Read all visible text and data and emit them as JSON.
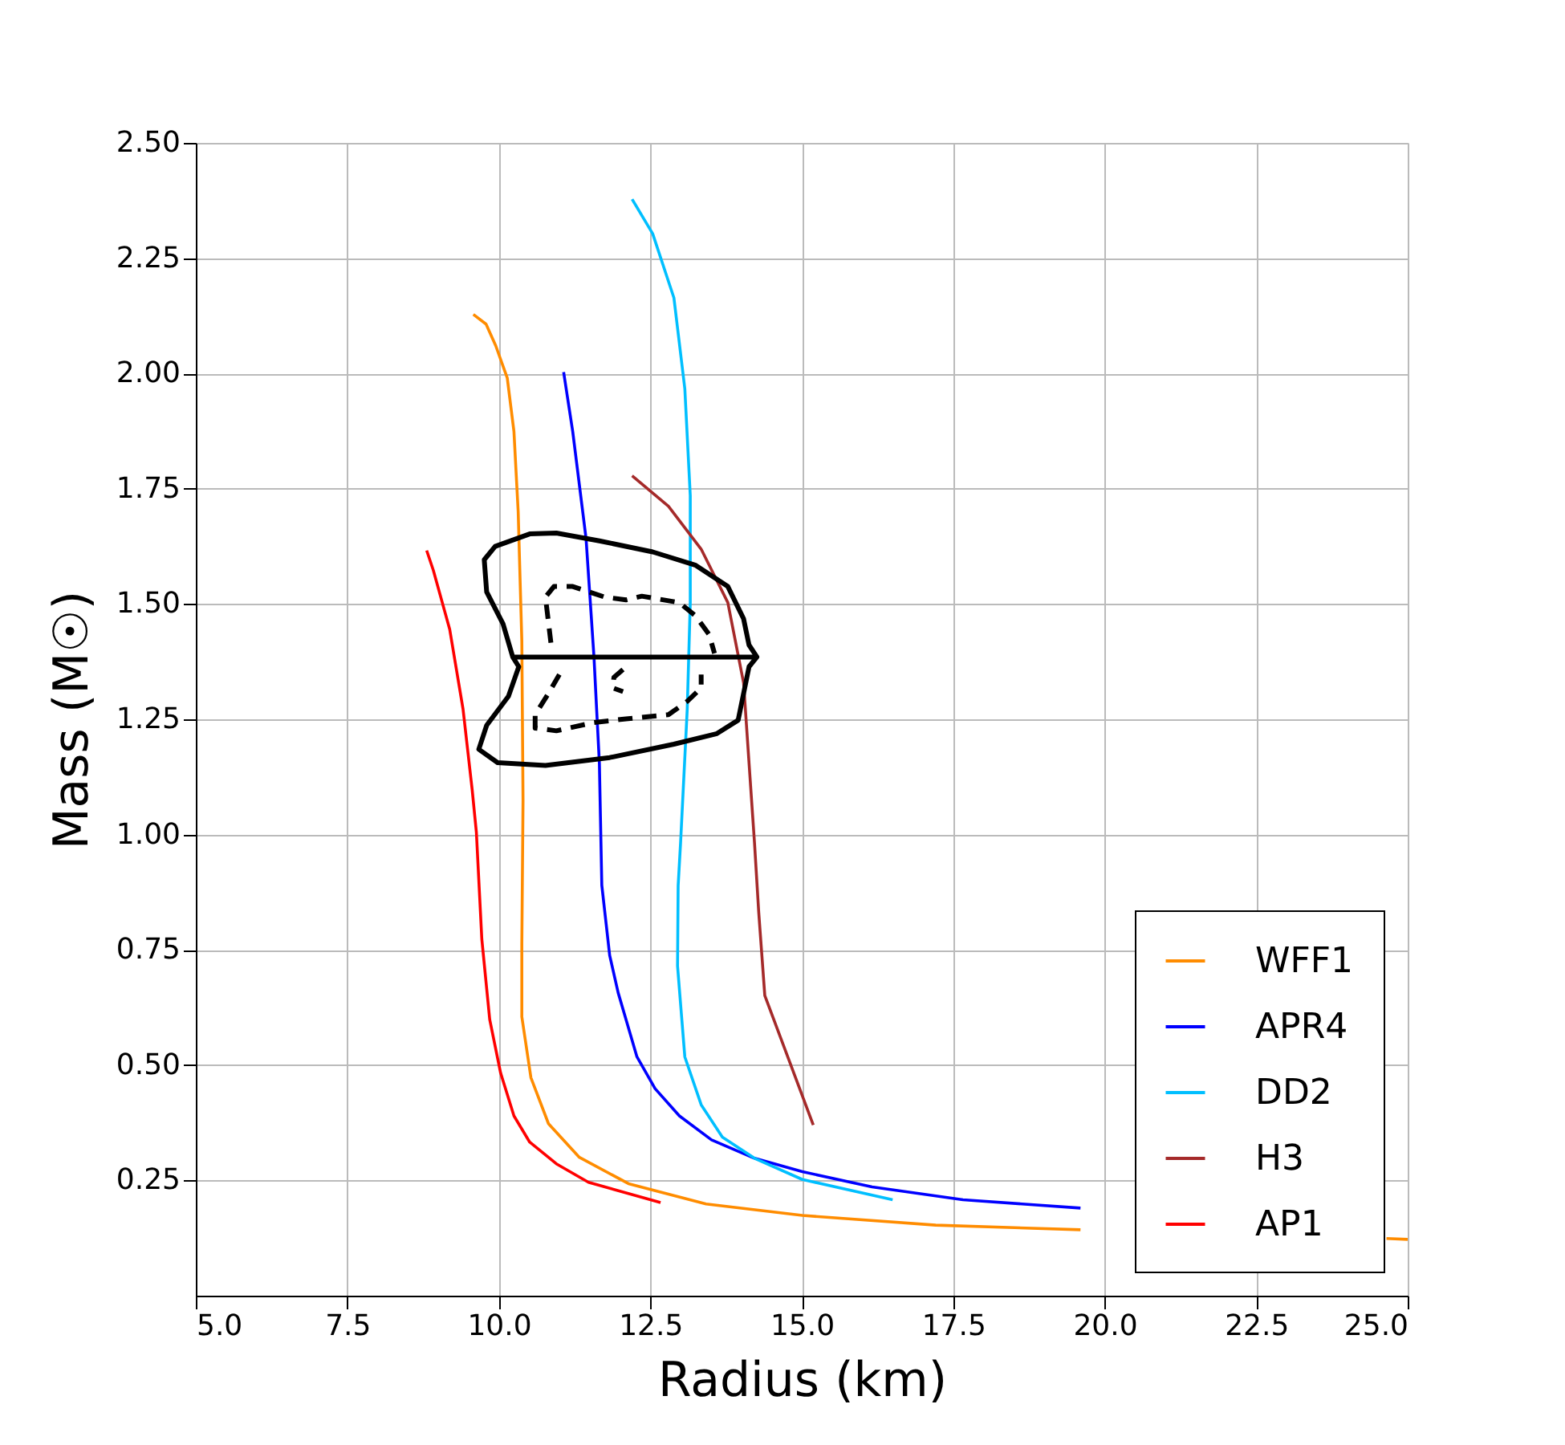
{
  "chart_data": {
    "type": "line",
    "xlabel": "Radius (km)",
    "ylabel": "Mass (M☉)",
    "xlim": [
      5.0,
      25.0
    ],
    "ylim": [
      0.0,
      2.5
    ],
    "xticks": [
      {
        "value": 5,
        "label": "5.0"
      },
      {
        "value": 7.5,
        "label": "7.5"
      },
      {
        "value": 10,
        "label": "10.0"
      },
      {
        "value": 12.5,
        "label": "12.5"
      },
      {
        "value": 15,
        "label": "15.0"
      },
      {
        "value": 17.5,
        "label": "17.5"
      },
      {
        "value": 20,
        "label": "20.0"
      },
      {
        "value": 22.5,
        "label": "22.5"
      },
      {
        "value": 25,
        "label": "25.0"
      }
    ],
    "yticks": [
      0.25,
      {
        "value": 0.5,
        "label": "0.50"
      },
      0.75,
      {
        "value": 1,
        "label": "1.00"
      },
      1.25,
      {
        "value": 1.5,
        "label": "1.50"
      },
      1.75,
      {
        "value": 2,
        "label": "2.00"
      },
      2.25,
      {
        "value": 2.5,
        "label": "2.50"
      }
    ],
    "grid": true,
    "legend": "bottom right",
    "series": [
      {
        "name": "WFF1",
        "color": "#ff8c00",
        "x": [
          9.58,
          9.79,
          9.95,
          10.14,
          10.25,
          10.32,
          10.38,
          10.4,
          10.38,
          10.38,
          10.53,
          10.82,
          11.33,
          12.14,
          13.42,
          15.01,
          17.21,
          19.6,
          22.0,
          24.65,
          25.0
        ],
        "values": [
          2.128,
          2.107,
          2.06,
          1.99,
          1.874,
          1.7,
          1.42,
          1.074,
          0.761,
          0.605,
          0.473,
          0.373,
          0.3,
          0.243,
          0.199,
          0.174,
          0.153,
          0.143,
          null,
          0.124,
          0.122
        ]
      },
      {
        "name": "APR4",
        "color": "#0000ff",
        "x": [
          11.07,
          11.22,
          11.44,
          11.57,
          11.66,
          11.7,
          11.83,
          11.97,
          12.28,
          12.58,
          12.98,
          13.51,
          14.22,
          15.01,
          16.16,
          17.66,
          19.6
        ],
        "values": [
          2.003,
          1.874,
          1.642,
          1.387,
          1.155,
          0.89,
          0.738,
          0.657,
          0.518,
          0.449,
          0.39,
          0.338,
          0.298,
          0.269,
          0.236,
          0.208,
          0.19
        ]
      },
      {
        "name": "DD2",
        "color": "#00bfff",
        "x": [
          12.2,
          12.54,
          12.89,
          13.07,
          13.16,
          13.16,
          13.11,
          13.0,
          12.96,
          12.95,
          13.07,
          13.34,
          13.69,
          14.22,
          15.01,
          16.5
        ],
        "values": [
          2.378,
          2.303,
          2.164,
          1.967,
          1.735,
          1.503,
          1.272,
          0.982,
          0.889,
          0.715,
          0.518,
          0.414,
          0.344,
          0.298,
          0.252,
          0.208
        ]
      },
      {
        "name": "H3",
        "color": "#a52a2a",
        "x": [
          12.2,
          12.8,
          13.34,
          13.78,
          14.04,
          14.13,
          14.22,
          14.29,
          14.39,
          15.19
        ],
        "values": [
          1.778,
          1.712,
          1.619,
          1.503,
          1.329,
          1.155,
          0.982,
          0.831,
          0.651,
          0.37
        ]
      },
      {
        "name": "AP1",
        "color": "#ff0000",
        "x": [
          8.81,
          8.92,
          9.19,
          9.41,
          9.56,
          9.63,
          9.72,
          9.85,
          10.03,
          10.25,
          10.51,
          10.95,
          11.48,
          12.67
        ],
        "values": [
          1.616,
          1.573,
          1.445,
          1.272,
          1.098,
          1.005,
          0.773,
          0.599,
          0.483,
          0.39,
          0.333,
          0.286,
          0.246,
          0.202
        ]
      },
      {
        "color": "#000000",
        "line_style": "solid",
        "x": [
          10.23,
          10.07,
          9.8,
          9.76,
          9.94,
          10.51,
          10.95,
          11.66,
          12.54,
          13.25,
          13.78,
          14.04,
          14.13,
          14.26,
          14.13,
          14.04,
          13.95,
          13.6,
          12.89,
          11.83,
          10.77,
          9.98,
          9.67,
          9.8,
          10.16,
          10.33,
          10.23,
          14.26
        ],
        "values": [
          1.385,
          1.457,
          1.526,
          1.596,
          1.625,
          1.652,
          1.654,
          1.637,
          1.613,
          1.584,
          1.538,
          1.468,
          1.411,
          1.385,
          1.364,
          1.306,
          1.248,
          1.219,
          1.196,
          1.167,
          1.15,
          1.156,
          1.185,
          1.237,
          1.3,
          1.364,
          1.385,
          1.385
        ]
      },
      {
        "color": "#000000",
        "line_style": "dashed",
        "x": [
          10.86,
          10.77,
          10.91,
          11.22,
          11.75,
          12.1,
          12.36,
          12.98,
          13.25,
          13.47,
          13.56
        ],
        "values": [
          1.416,
          1.515,
          1.538,
          1.538,
          1.515,
          1.509,
          1.517,
          1.503,
          1.474,
          1.434,
          1.393
        ]
      },
      {
        "color": "#000000",
        "line_style": "dashed",
        "x": [
          11.0,
          10.82,
          10.6,
          10.6,
          10.95,
          11.57,
          12.1,
          12.8,
          13.11,
          13.34,
          13.34
        ],
        "values": [
          1.347,
          1.306,
          1.26,
          1.231,
          1.225,
          1.243,
          1.251,
          1.26,
          1.289,
          1.318,
          1.347
        ]
      },
      {
        "color": "#000000",
        "line_style": "dashed",
        "x": [
          12.05,
          11.9,
          11.88,
          12.05
        ],
        "values": [
          1.358,
          1.341,
          1.318,
          1.31
        ]
      }
    ]
  }
}
